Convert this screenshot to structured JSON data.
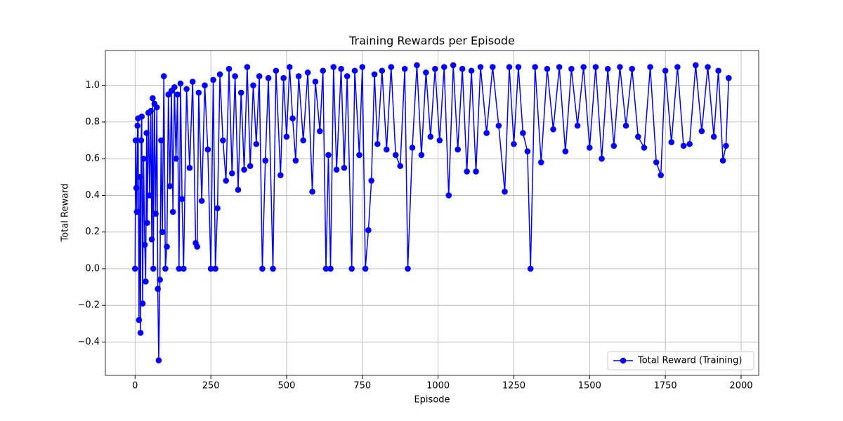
{
  "chart_data": {
    "type": "line",
    "title": "Training Rewards per Episode",
    "x_label": "Episode",
    "y_label": "Total Reward",
    "x": [
      0,
      2,
      4,
      6,
      8,
      10,
      13,
      16,
      18,
      20,
      22,
      25,
      28,
      32,
      35,
      38,
      40,
      44,
      48,
      52,
      55,
      58,
      60,
      64,
      68,
      72,
      75,
      78,
      82,
      86,
      90,
      95,
      100,
      105,
      110,
      115,
      120,
      125,
      130,
      135,
      140,
      145,
      150,
      155,
      160,
      170,
      180,
      190,
      200,
      205,
      210,
      220,
      230,
      240,
      250,
      258,
      265,
      272,
      280,
      290,
      300,
      310,
      320,
      330,
      340,
      350,
      360,
      370,
      380,
      390,
      400,
      410,
      420,
      430,
      440,
      455,
      465,
      480,
      490,
      500,
      510,
      520,
      530,
      540,
      555,
      570,
      585,
      595,
      610,
      620,
      630,
      638,
      645,
      655,
      665,
      680,
      690,
      700,
      715,
      725,
      740,
      750,
      760,
      770,
      780,
      790,
      800,
      815,
      830,
      845,
      860,
      875,
      890,
      900,
      915,
      930,
      945,
      960,
      975,
      990,
      1005,
      1020,
      1035,
      1050,
      1065,
      1080,
      1095,
      1110,
      1125,
      1140,
      1160,
      1180,
      1200,
      1220,
      1235,
      1250,
      1265,
      1280,
      1295,
      1305,
      1320,
      1340,
      1360,
      1380,
      1400,
      1420,
      1440,
      1460,
      1480,
      1500,
      1520,
      1540,
      1560,
      1580,
      1600,
      1620,
      1640,
      1660,
      1680,
      1700,
      1720,
      1735,
      1750,
      1770,
      1790,
      1810,
      1830,
      1850,
      1870,
      1890,
      1910,
      1925,
      1940,
      1950,
      1959
    ],
    "series": [
      {
        "name": "Total Reward (Training)",
        "color": "#0000ff",
        "values": [
          0.0,
          0.7,
          0.44,
          0.31,
          0.78,
          0.82,
          -0.28,
          0.5,
          -0.35,
          0.7,
          0.83,
          -0.19,
          0.6,
          0.13,
          -0.07,
          0.74,
          0.25,
          0.85,
          0.4,
          0.86,
          0.16,
          0.93,
          0.0,
          0.9,
          0.3,
          0.88,
          -0.11,
          -0.5,
          -0.06,
          0.7,
          0.2,
          1.05,
          0.0,
          0.12,
          0.95,
          0.45,
          0.97,
          0.31,
          0.99,
          0.6,
          0.95,
          0.0,
          1.01,
          0.38,
          0.0,
          0.98,
          0.55,
          1.02,
          0.14,
          0.12,
          0.96,
          0.37,
          1.0,
          0.65,
          0.0,
          1.03,
          0.0,
          0.33,
          1.06,
          0.7,
          0.48,
          1.09,
          0.52,
          1.05,
          0.43,
          0.96,
          0.54,
          1.1,
          0.56,
          1.0,
          0.68,
          1.05,
          0.0,
          0.59,
          1.04,
          0.0,
          1.08,
          0.51,
          1.04,
          0.72,
          1.1,
          0.82,
          0.59,
          1.05,
          0.7,
          1.07,
          0.42,
          1.02,
          0.75,
          1.08,
          0.0,
          0.62,
          0.0,
          1.1,
          0.54,
          1.09,
          0.55,
          1.05,
          0.0,
          1.08,
          0.62,
          1.1,
          0.0,
          0.21,
          0.48,
          1.06,
          0.68,
          1.08,
          0.65,
          1.1,
          0.62,
          0.56,
          1.09,
          0.0,
          0.66,
          1.11,
          0.62,
          1.07,
          0.72,
          1.09,
          0.7,
          1.1,
          0.4,
          1.11,
          0.65,
          1.09,
          0.53,
          1.08,
          0.53,
          1.1,
          0.74,
          1.1,
          0.78,
          0.42,
          1.1,
          0.68,
          1.1,
          0.74,
          0.64,
          0.0,
          1.1,
          0.58,
          1.09,
          0.76,
          1.1,
          0.64,
          1.09,
          0.78,
          1.1,
          0.66,
          1.1,
          0.6,
          1.09,
          0.67,
          1.1,
          0.78,
          1.09,
          0.72,
          0.66,
          1.1,
          0.58,
          0.51,
          1.08,
          0.69,
          1.1,
          0.67,
          0.68,
          1.11,
          0.75,
          1.1,
          0.72,
          1.08,
          0.59,
          0.67,
          1.04
        ]
      }
    ],
    "xlim": [
      -98,
      2058
    ],
    "ylim": [
      -0.582,
      1.19
    ],
    "xticks": [
      0,
      250,
      500,
      750,
      1000,
      1250,
      1500,
      1750,
      2000
    ],
    "yticks": [
      {
        "value": -0.4,
        "label": "−0.4"
      },
      {
        "value": -0.2,
        "label": "−0.2"
      },
      {
        "value": 0,
        "label": "0.0"
      },
      {
        "value": 0.2,
        "label": "0.2"
      },
      {
        "value": 0.4,
        "label": "0.4"
      },
      {
        "value": 0.6,
        "label": "0.6"
      },
      {
        "value": 0.8,
        "label": "0.8"
      },
      {
        "value": 1.0,
        "label": "1.0"
      }
    ],
    "grid": true,
    "legend": "lower right"
  }
}
